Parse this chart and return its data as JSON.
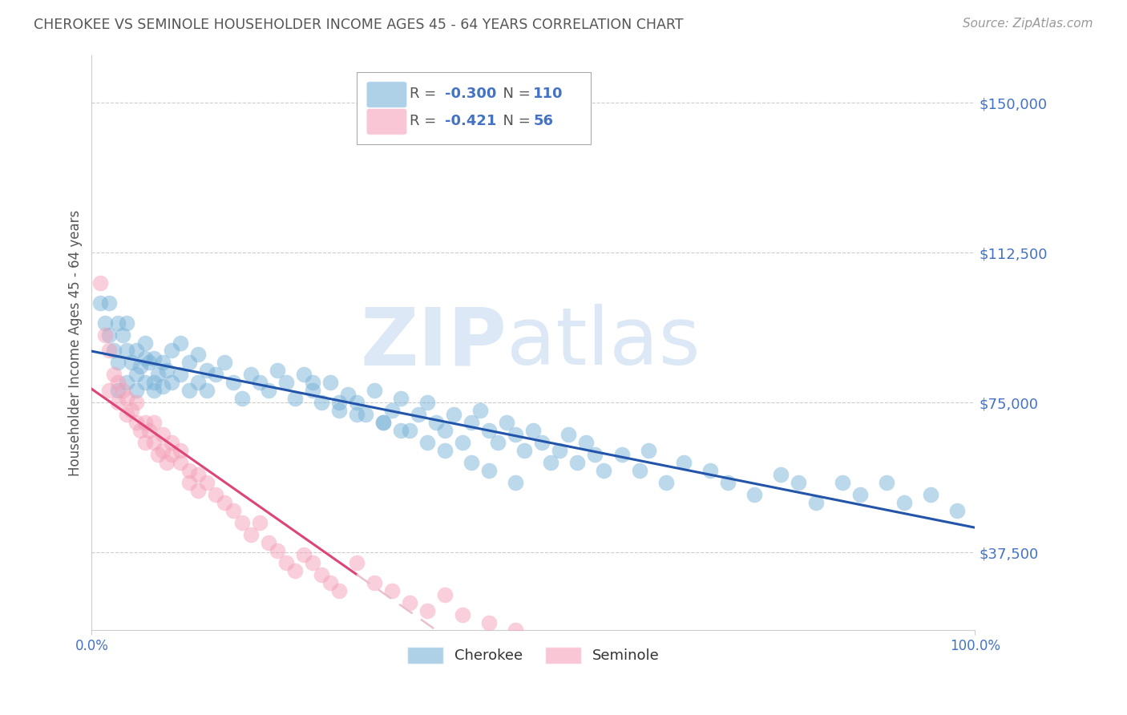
{
  "title": "CHEROKEE VS SEMINOLE HOUSEHOLDER INCOME AGES 45 - 64 YEARS CORRELATION CHART",
  "source": "Source: ZipAtlas.com",
  "ylabel": "Householder Income Ages 45 - 64 years",
  "ytick_labels": [
    "$37,500",
    "$75,000",
    "$112,500",
    "$150,000"
  ],
  "ytick_values": [
    37500,
    75000,
    112500,
    150000
  ],
  "ymin": 18000,
  "ymax": 162000,
  "xmin": 0.0,
  "xmax": 1.0,
  "title_color": "#555555",
  "source_color": "#999999",
  "ytick_color": "#4472c4",
  "grid_color": "#cccccc",
  "watermark_zip": "ZIP",
  "watermark_atlas": "atlas",
  "watermark_color": "#dce8f5",
  "legend_label1": "Cherokee",
  "legend_label2": "Seminole",
  "cherokee_color": "#7ab3d9",
  "seminole_color": "#f4a0b8",
  "cherokee_line_color": "#2255aa",
  "seminole_line_color": "#dd4477",
  "seminole_line_dash_color": "#e8c0d0",
  "cherokee_R": -0.3,
  "cherokee_N": 110,
  "seminole_R": -0.421,
  "seminole_N": 56,
  "cherokee_scatter_x": [
    0.01,
    0.015,
    0.02,
    0.02,
    0.025,
    0.03,
    0.03,
    0.03,
    0.035,
    0.04,
    0.04,
    0.04,
    0.045,
    0.05,
    0.05,
    0.05,
    0.055,
    0.06,
    0.06,
    0.06,
    0.065,
    0.07,
    0.07,
    0.07,
    0.075,
    0.08,
    0.08,
    0.085,
    0.09,
    0.09,
    0.1,
    0.1,
    0.11,
    0.11,
    0.12,
    0.12,
    0.13,
    0.13,
    0.14,
    0.15,
    0.16,
    0.17,
    0.18,
    0.19,
    0.2,
    0.21,
    0.22,
    0.23,
    0.24,
    0.25,
    0.26,
    0.27,
    0.28,
    0.29,
    0.3,
    0.31,
    0.32,
    0.33,
    0.34,
    0.35,
    0.36,
    0.37,
    0.38,
    0.39,
    0.4,
    0.41,
    0.42,
    0.43,
    0.44,
    0.45,
    0.46,
    0.47,
    0.48,
    0.49,
    0.5,
    0.51,
    0.52,
    0.53,
    0.54,
    0.55,
    0.56,
    0.57,
    0.58,
    0.6,
    0.62,
    0.63,
    0.65,
    0.67,
    0.7,
    0.72,
    0.75,
    0.78,
    0.8,
    0.82,
    0.85,
    0.87,
    0.9,
    0.92,
    0.95,
    0.98,
    0.25,
    0.28,
    0.3,
    0.33,
    0.35,
    0.38,
    0.4,
    0.43,
    0.45,
    0.48
  ],
  "cherokee_scatter_y": [
    100000,
    95000,
    92000,
    100000,
    88000,
    95000,
    85000,
    78000,
    92000,
    88000,
    80000,
    95000,
    85000,
    82000,
    88000,
    78000,
    84000,
    80000,
    86000,
    90000,
    85000,
    80000,
    78000,
    86000,
    82000,
    85000,
    79000,
    83000,
    88000,
    80000,
    90000,
    82000,
    85000,
    78000,
    80000,
    87000,
    83000,
    78000,
    82000,
    85000,
    80000,
    76000,
    82000,
    80000,
    78000,
    83000,
    80000,
    76000,
    82000,
    78000,
    75000,
    80000,
    73000,
    77000,
    75000,
    72000,
    78000,
    70000,
    73000,
    76000,
    68000,
    72000,
    75000,
    70000,
    68000,
    72000,
    65000,
    70000,
    73000,
    68000,
    65000,
    70000,
    67000,
    63000,
    68000,
    65000,
    60000,
    63000,
    67000,
    60000,
    65000,
    62000,
    58000,
    62000,
    58000,
    63000,
    55000,
    60000,
    58000,
    55000,
    52000,
    57000,
    55000,
    50000,
    55000,
    52000,
    55000,
    50000,
    52000,
    48000,
    80000,
    75000,
    72000,
    70000,
    68000,
    65000,
    63000,
    60000,
    58000,
    55000
  ],
  "seminole_scatter_x": [
    0.01,
    0.015,
    0.02,
    0.02,
    0.025,
    0.03,
    0.03,
    0.035,
    0.04,
    0.04,
    0.045,
    0.05,
    0.05,
    0.055,
    0.06,
    0.06,
    0.065,
    0.07,
    0.07,
    0.075,
    0.08,
    0.08,
    0.085,
    0.09,
    0.09,
    0.1,
    0.1,
    0.11,
    0.11,
    0.12,
    0.12,
    0.13,
    0.14,
    0.15,
    0.16,
    0.17,
    0.18,
    0.19,
    0.2,
    0.21,
    0.22,
    0.23,
    0.24,
    0.25,
    0.26,
    0.27,
    0.28,
    0.3,
    0.32,
    0.34,
    0.36,
    0.38,
    0.4,
    0.42,
    0.45,
    0.48
  ],
  "seminole_scatter_y": [
    105000,
    92000,
    88000,
    78000,
    82000,
    80000,
    75000,
    78000,
    72000,
    76000,
    73000,
    70000,
    75000,
    68000,
    70000,
    65000,
    68000,
    65000,
    70000,
    62000,
    63000,
    67000,
    60000,
    62000,
    65000,
    60000,
    63000,
    58000,
    55000,
    57000,
    53000,
    55000,
    52000,
    50000,
    48000,
    45000,
    42000,
    45000,
    40000,
    38000,
    35000,
    33000,
    37000,
    35000,
    32000,
    30000,
    28000,
    35000,
    30000,
    28000,
    25000,
    23000,
    27000,
    22000,
    20000,
    18000
  ],
  "seminole_line_solid_end": 0.3
}
